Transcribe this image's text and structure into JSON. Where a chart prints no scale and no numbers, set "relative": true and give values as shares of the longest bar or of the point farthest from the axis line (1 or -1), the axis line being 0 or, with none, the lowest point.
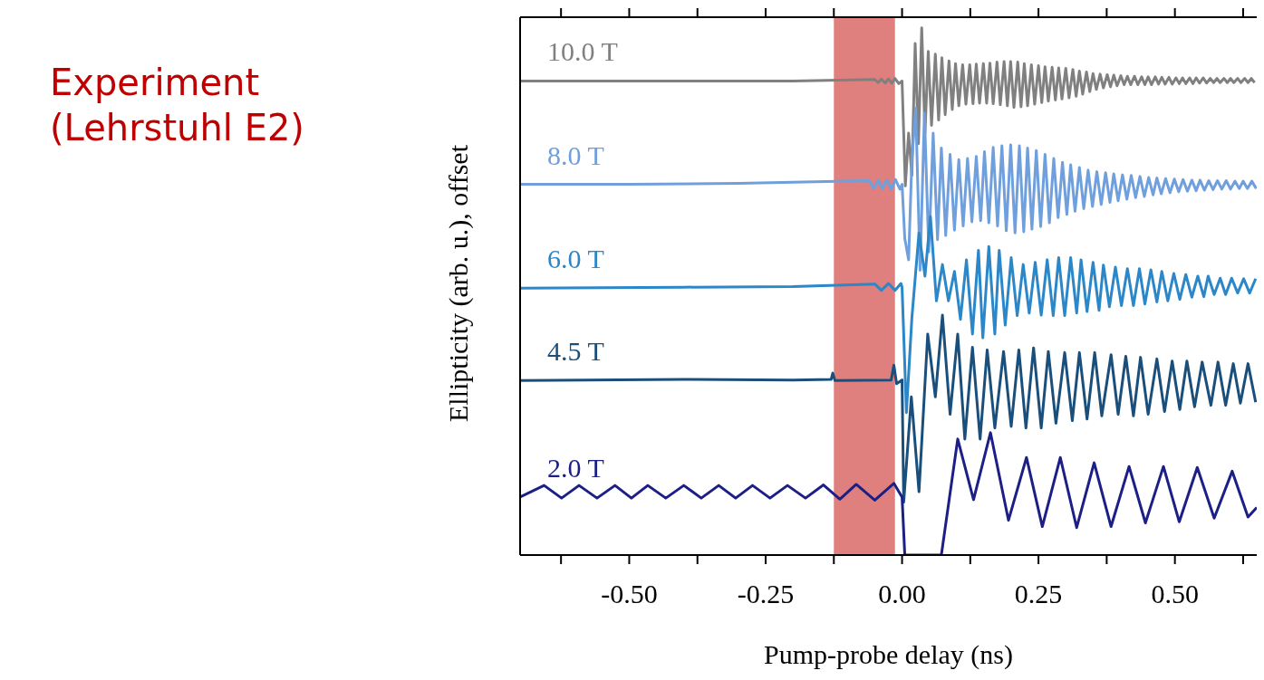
{
  "chart_data": {
    "type": "line",
    "title": "Experiment (Lehrstuhl E2)",
    "xlabel": "Pump-probe delay (ns)",
    "ylabel": "Ellipticity (arb. u.), offset",
    "relative": true,
    "xlim": [
      -0.7,
      0.65
    ],
    "xticks": [
      {
        "value": -0.625,
        "label": null
      },
      {
        "value": -0.5,
        "label": "-0.50"
      },
      {
        "value": -0.375,
        "label": null
      },
      {
        "value": -0.25,
        "label": "-0.25"
      },
      {
        "value": -0.125,
        "label": null
      },
      {
        "value": 0,
        "label": "0.00"
      },
      {
        "value": 0.125,
        "label": null
      },
      {
        "value": 0.25,
        "label": "0.25"
      },
      {
        "value": 0.375,
        "label": null
      },
      {
        "value": 0.5,
        "label": "0.50"
      },
      {
        "value": 0.625,
        "label": null
      }
    ],
    "bands": [
      {
        "axis": "x",
        "from": -0.125,
        "to": -0.013,
        "color": "#dc7270"
      }
    ],
    "series": [
      {
        "name": "10.0 T",
        "color": "#808080",
        "x": [
          -0.7,
          -0.4,
          -0.2,
          -0.05,
          -0.044,
          -0.038,
          -0.031,
          -0.025,
          -0.019,
          -0.013,
          -0.006,
          0,
          0.006,
          0.012,
          0.018,
          0.024,
          0.03,
          0.036,
          0.042,
          0.048,
          0.054,
          0.061,
          0.067,
          0.073,
          0.079,
          0.086,
          0.092,
          0.098,
          0.104,
          0.111,
          0.117,
          0.124,
          0.13,
          0.136,
          0.142,
          0.149,
          0.155,
          0.161,
          0.167,
          0.174,
          0.18,
          0.187,
          0.193,
          0.199,
          0.205,
          0.212,
          0.218,
          0.224,
          0.23,
          0.237,
          0.243,
          0.25,
          0.256,
          0.262,
          0.268,
          0.275,
          0.281,
          0.287,
          0.293,
          0.3,
          0.306,
          0.313,
          0.319,
          0.325,
          0.331,
          0.338,
          0.344,
          0.35,
          0.356,
          0.363,
          0.369,
          0.376,
          0.382,
          0.388,
          0.394,
          0.401,
          0.407,
          0.413,
          0.419,
          0.426,
          0.432,
          0.439,
          0.445,
          0.451,
          0.457,
          0.464,
          0.47,
          0.476,
          0.482,
          0.489,
          0.495,
          0.502,
          0.508,
          0.514,
          0.52,
          0.527,
          0.533,
          0.539,
          0.545,
          0.552,
          0.558,
          0.565,
          0.571,
          0.577,
          0.583,
          0.59,
          0.596,
          0.602,
          0.608,
          0.615,
          0.621,
          0.628,
          0.634,
          0.64,
          0.646
        ],
        "values": [
          0.899,
          0.899,
          0.899,
          0.902,
          0.896,
          0.903,
          0.895,
          0.903,
          0.895,
          0.904,
          0.894,
          0.899,
          0.7,
          0.8,
          0.72,
          0.97,
          0.78,
          1.0,
          0.8,
          0.955,
          0.815,
          0.95,
          0.825,
          0.943,
          0.835,
          0.937,
          0.845,
          0.932,
          0.852,
          0.93,
          0.855,
          0.93,
          0.856,
          0.931,
          0.857,
          0.932,
          0.857,
          0.933,
          0.856,
          0.935,
          0.854,
          0.936,
          0.852,
          0.936,
          0.849,
          0.935,
          0.85,
          0.932,
          0.852,
          0.93,
          0.855,
          0.928,
          0.858,
          0.926,
          0.861,
          0.925,
          0.863,
          0.924,
          0.865,
          0.923,
          0.867,
          0.921,
          0.87,
          0.918,
          0.874,
          0.916,
          0.879,
          0.913,
          0.883,
          0.912,
          0.886,
          0.911,
          0.888,
          0.91,
          0.89,
          0.909,
          0.892,
          0.908,
          0.892,
          0.908,
          0.892,
          0.907,
          0.892,
          0.907,
          0.892,
          0.907,
          0.893,
          0.906,
          0.893,
          0.906,
          0.893,
          0.905,
          0.894,
          0.905,
          0.894,
          0.905,
          0.894,
          0.905,
          0.895,
          0.905,
          0.895,
          0.904,
          0.896,
          0.904,
          0.896,
          0.904,
          0.896,
          0.904,
          0.896,
          0.904,
          0.896,
          0.904,
          0.896,
          0.904,
          0.896
        ]
      },
      {
        "name": "8.0 T",
        "color": "#6f9fdc",
        "x": [
          -0.7,
          -0.5,
          -0.3,
          -0.06,
          -0.052,
          -0.044,
          -0.036,
          -0.028,
          -0.02,
          -0.012,
          -0.004,
          0,
          0.005,
          0.012,
          0.018,
          0.025,
          0.033,
          0.041,
          0.049,
          0.057,
          0.065,
          0.072,
          0.08,
          0.088,
          0.096,
          0.104,
          0.112,
          0.12,
          0.128,
          0.136,
          0.144,
          0.151,
          0.159,
          0.167,
          0.175,
          0.183,
          0.191,
          0.199,
          0.207,
          0.215,
          0.223,
          0.23,
          0.238,
          0.246,
          0.254,
          0.262,
          0.27,
          0.278,
          0.286,
          0.294,
          0.302,
          0.309,
          0.317,
          0.325,
          0.333,
          0.341,
          0.349,
          0.357,
          0.365,
          0.373,
          0.381,
          0.388,
          0.396,
          0.404,
          0.412,
          0.42,
          0.428,
          0.436,
          0.444,
          0.452,
          0.46,
          0.467,
          0.475,
          0.483,
          0.491,
          0.499,
          0.507,
          0.515,
          0.523,
          0.531,
          0.539,
          0.546,
          0.554,
          0.562,
          0.57,
          0.578,
          0.586,
          0.594,
          0.602,
          0.61,
          0.618,
          0.625,
          0.633,
          0.641,
          0.649
        ],
        "values": [
          0.703,
          0.703,
          0.705,
          0.71,
          0.695,
          0.711,
          0.695,
          0.712,
          0.694,
          0.712,
          0.694,
          0.703,
          0.6,
          0.56,
          0.75,
          0.848,
          0.54,
          0.838,
          0.575,
          0.8,
          0.598,
          0.772,
          0.606,
          0.76,
          0.616,
          0.75,
          0.624,
          0.752,
          0.632,
          0.756,
          0.634,
          0.765,
          0.63,
          0.773,
          0.624,
          0.776,
          0.615,
          0.778,
          0.611,
          0.776,
          0.613,
          0.772,
          0.618,
          0.767,
          0.623,
          0.76,
          0.63,
          0.752,
          0.64,
          0.745,
          0.646,
          0.74,
          0.652,
          0.735,
          0.657,
          0.73,
          0.661,
          0.727,
          0.665,
          0.725,
          0.669,
          0.723,
          0.672,
          0.721,
          0.675,
          0.72,
          0.678,
          0.718,
          0.68,
          0.716,
          0.683,
          0.715,
          0.685,
          0.714,
          0.687,
          0.713,
          0.689,
          0.712,
          0.69,
          0.711,
          0.691,
          0.711,
          0.692,
          0.71,
          0.693,
          0.71,
          0.694,
          0.71,
          0.694,
          0.709,
          0.695,
          0.709,
          0.695,
          0.709,
          0.695
        ]
      },
      {
        "name": "6.0 T",
        "color": "#2b87c8",
        "x": [
          -0.7,
          -0.4,
          -0.2,
          -0.05,
          -0.038,
          -0.025,
          -0.013,
          -0.002,
          0,
          0.008,
          0.018,
          0.031,
          0.042,
          0.052,
          0.063,
          0.074,
          0.085,
          0.096,
          0.107,
          0.118,
          0.129,
          0.14,
          0.148,
          0.159,
          0.17,
          0.178,
          0.189,
          0.2,
          0.211,
          0.222,
          0.233,
          0.244,
          0.255,
          0.266,
          0.277,
          0.287,
          0.298,
          0.309,
          0.32,
          0.328,
          0.339,
          0.35,
          0.361,
          0.369,
          0.38,
          0.391,
          0.402,
          0.413,
          0.424,
          0.435,
          0.445,
          0.456,
          0.467,
          0.476,
          0.487,
          0.498,
          0.509,
          0.52,
          0.531,
          0.542,
          0.553,
          0.561,
          0.572,
          0.583,
          0.593,
          0.604,
          0.615,
          0.626,
          0.637,
          0.648
        ],
        "values": [
          0.506,
          0.508,
          0.509,
          0.514,
          0.502,
          0.515,
          0.502,
          0.515,
          0.508,
          0.27,
          0.45,
          0.611,
          0.529,
          0.642,
          0.482,
          0.551,
          0.482,
          0.538,
          0.447,
          0.56,
          0.419,
          0.578,
          0.412,
          0.585,
          0.419,
          0.578,
          0.436,
          0.564,
          0.454,
          0.551,
          0.459,
          0.555,
          0.455,
          0.56,
          0.454,
          0.564,
          0.454,
          0.564,
          0.459,
          0.56,
          0.462,
          0.555,
          0.464,
          0.55,
          0.471,
          0.546,
          0.473,
          0.543,
          0.473,
          0.543,
          0.476,
          0.541,
          0.48,
          0.538,
          0.482,
          0.534,
          0.485,
          0.532,
          0.489,
          0.529,
          0.49,
          0.529,
          0.494,
          0.525,
          0.494,
          0.525,
          0.497,
          0.524,
          0.497,
          0.524
        ]
      },
      {
        "name": "4.5 T",
        "color": "#1a4f7c",
        "x": [
          -0.7,
          -0.4,
          -0.2,
          -0.13,
          -0.127,
          -0.123,
          -0.02,
          -0.015,
          -0.01,
          0,
          0.003,
          0.017,
          0.031,
          0.047,
          0.061,
          0.074,
          0.088,
          0.102,
          0.115,
          0.129,
          0.143,
          0.156,
          0.17,
          0.186,
          0.2,
          0.214,
          0.227,
          0.241,
          0.255,
          0.268,
          0.282,
          0.298,
          0.312,
          0.325,
          0.339,
          0.353,
          0.366,
          0.383,
          0.396,
          0.41,
          0.424,
          0.437,
          0.451,
          0.467,
          0.481,
          0.495,
          0.509,
          0.522,
          0.536,
          0.55,
          0.566,
          0.579,
          0.593,
          0.607,
          0.62,
          0.634,
          0.648
        ],
        "values": [
          0.331,
          0.333,
          0.332,
          0.333,
          0.345,
          0.331,
          0.332,
          0.36,
          0.325,
          0.332,
          0.1,
          0.3,
          0.12,
          0.419,
          0.3,
          0.455,
          0.267,
          0.419,
          0.22,
          0.394,
          0.22,
          0.389,
          0.241,
          0.386,
          0.244,
          0.389,
          0.241,
          0.393,
          0.241,
          0.386,
          0.25,
          0.384,
          0.255,
          0.384,
          0.258,
          0.384,
          0.264,
          0.38,
          0.267,
          0.377,
          0.264,
          0.375,
          0.267,
          0.372,
          0.272,
          0.368,
          0.276,
          0.368,
          0.281,
          0.366,
          0.284,
          0.366,
          0.284,
          0.363,
          0.288,
          0.363,
          0.29
        ]
      },
      {
        "name": "2.0 T",
        "color": "#1c1f85",
        "x": [
          -0.7,
          -0.656,
          -0.624,
          -0.592,
          -0.559,
          -0.526,
          -0.496,
          -0.466,
          -0.433,
          -0.4,
          -0.368,
          -0.336,
          -0.305,
          -0.274,
          -0.242,
          -0.21,
          -0.177,
          -0.144,
          -0.114,
          -0.084,
          -0.05,
          -0.015,
          0,
          0.005,
          0.072,
          0.102,
          0.131,
          0.162,
          0.195,
          0.228,
          0.257,
          0.29,
          0.32,
          0.352,
          0.383,
          0.416,
          0.446,
          0.479,
          0.508,
          0.541,
          0.572,
          0.605,
          0.634,
          0.65
        ],
        "values": [
          0.11,
          0.132,
          0.108,
          0.132,
          0.108,
          0.132,
          0.108,
          0.132,
          0.108,
          0.132,
          0.108,
          0.132,
          0.108,
          0.132,
          0.108,
          0.132,
          0.108,
          0.133,
          0.106,
          0.134,
          0.104,
          0.136,
          0.11,
          0,
          0,
          0.22,
          0.105,
          0.232,
          0.066,
          0.185,
          0.054,
          0.185,
          0.052,
          0.175,
          0.054,
          0.168,
          0.061,
          0.168,
          0.063,
          0.166,
          0.07,
          0.159,
          0.072,
          0.09
        ]
      }
    ]
  }
}
